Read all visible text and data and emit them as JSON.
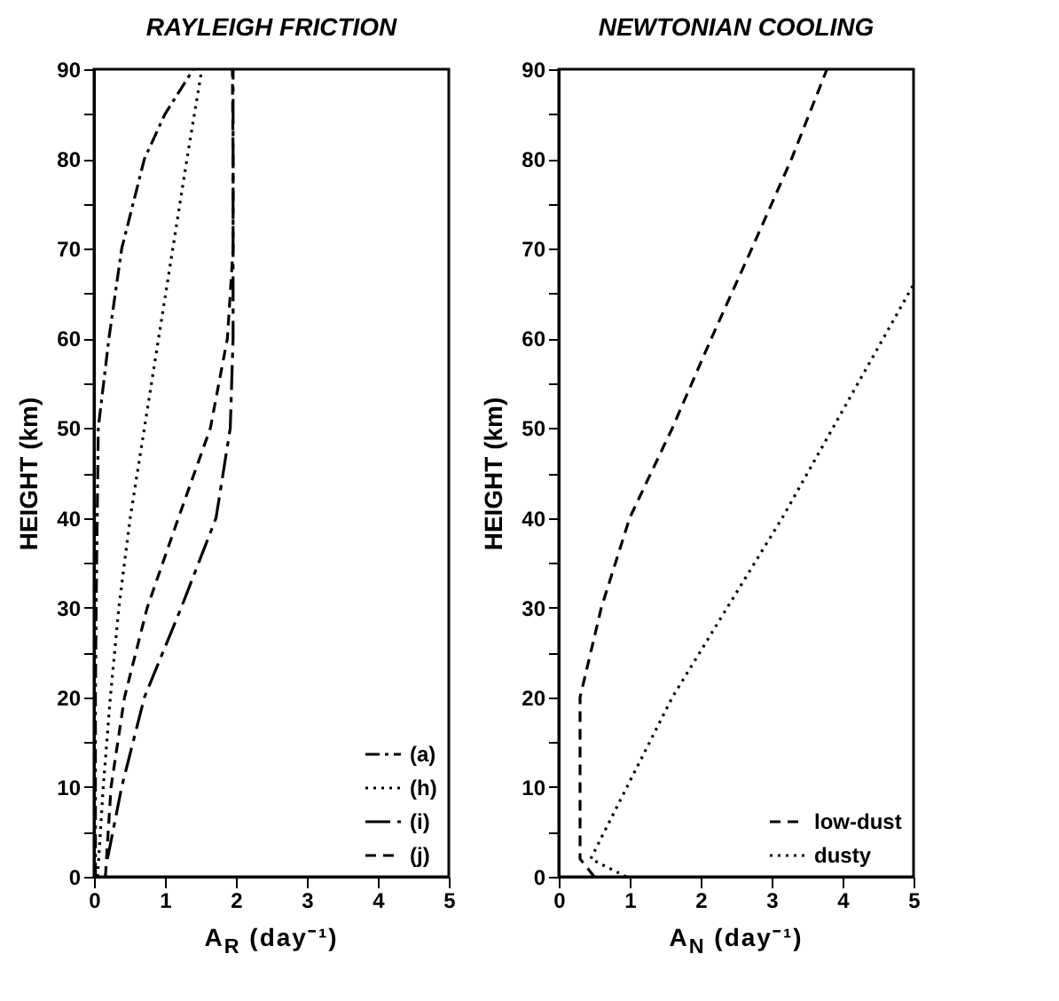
{
  "chart_data": [
    {
      "type": "line",
      "title": "RAYLEIGH FRICTION",
      "xlabel": "A$_{R}$ (day⁻¹)",
      "ylabel": "HEIGHT (km)",
      "xlim": [
        0,
        5
      ],
      "ylim": [
        0,
        90
      ],
      "xticks": [
        0,
        1,
        2,
        3,
        4,
        5
      ],
      "yticks": [
        0,
        {
          "value": 5,
          "label": null
        },
        10,
        {
          "value": 15,
          "label": null
        },
        20,
        {
          "value": 25,
          "label": null
        },
        30,
        {
          "value": 35,
          "label": null
        },
        40,
        {
          "value": 45,
          "label": null
        },
        50,
        {
          "value": 55,
          "label": null
        },
        60,
        {
          "value": 65,
          "label": null
        },
        70,
        {
          "value": 75,
          "label": null
        },
        80,
        {
          "value": 85,
          "label": null
        },
        90
      ],
      "grid": false,
      "legend": "bottom right",
      "series": [
        {
          "name": "(a)",
          "color": "#000000",
          "line_style": "dashdot",
          "x": [
            0.02,
            0.02,
            0.02,
            0.03,
            0.06,
            0.21,
            0.39,
            0.71,
            1.0,
            1.4
          ],
          "values": [
            0,
            10,
            20,
            30,
            50,
            60,
            70,
            80,
            85,
            90
          ]
        },
        {
          "name": "(h)",
          "color": "#000000",
          "line_style": "dotted",
          "x": [
            0.05,
            0.13,
            0.23,
            0.35,
            0.51,
            0.71,
            0.91,
            1.11,
            1.31,
            1.52
          ],
          "values": [
            0,
            10,
            20,
            30,
            40,
            50,
            60,
            70,
            80,
            90
          ]
        },
        {
          "name": "(i)",
          "color": "#000000",
          "line_style": "longdashdot",
          "x": [
            0.19,
            0.39,
            0.71,
            1.23,
            1.72,
            1.92,
            1.96,
            1.96,
            1.96,
            1.96
          ],
          "values": [
            2,
            10,
            20,
            30,
            40,
            50,
            60,
            70,
            80,
            90
          ]
        },
        {
          "name": "(j)",
          "color": "#000000",
          "line_style": "dashed",
          "x": [
            0.16,
            0.24,
            0.43,
            0.75,
            1.19,
            1.64,
            1.88,
            1.96,
            1.96,
            1.95
          ],
          "values": [
            0,
            10,
            20,
            30,
            40,
            50,
            60,
            70,
            80,
            90
          ]
        }
      ]
    },
    {
      "type": "line",
      "title": "NEWTONIAN COOLING",
      "xlabel": "A$_{N}$ (day⁻¹)",
      "ylabel": "HEIGHT (km)",
      "xlim": [
        0,
        5
      ],
      "ylim": [
        0,
        90
      ],
      "xticks": [
        0,
        1,
        2,
        3,
        4,
        5
      ],
      "yticks": [
        0,
        {
          "value": 5,
          "label": null
        },
        10,
        {
          "value": 15,
          "label": null
        },
        20,
        {
          "value": 25,
          "label": null
        },
        30,
        {
          "value": 35,
          "label": null
        },
        40,
        {
          "value": 45,
          "label": null
        },
        50,
        {
          "value": 55,
          "label": null
        },
        60,
        {
          "value": 65,
          "label": null
        },
        70,
        {
          "value": 75,
          "label": null
        },
        80,
        {
          "value": 85,
          "label": null
        },
        90
      ],
      "grid": false,
      "legend": "bottom right",
      "series": [
        {
          "name": "low-dust",
          "color": "#000000",
          "line_style": "dashed",
          "x": [
            0.5,
            0.3,
            0.3,
            0.6,
            1.0,
            1.6,
            2.15,
            2.72,
            3.28,
            3.78
          ],
          "values": [
            0,
            2,
            20,
            30,
            40,
            50,
            60,
            70,
            80,
            90
          ]
        },
        {
          "name": "dusty",
          "color": "#000000",
          "line_style": "dotted",
          "x": [
            0.95,
            0.45,
            1.6,
            3.15,
            5.0
          ],
          "values": [
            0,
            2,
            20,
            40,
            66
          ]
        }
      ]
    }
  ]
}
